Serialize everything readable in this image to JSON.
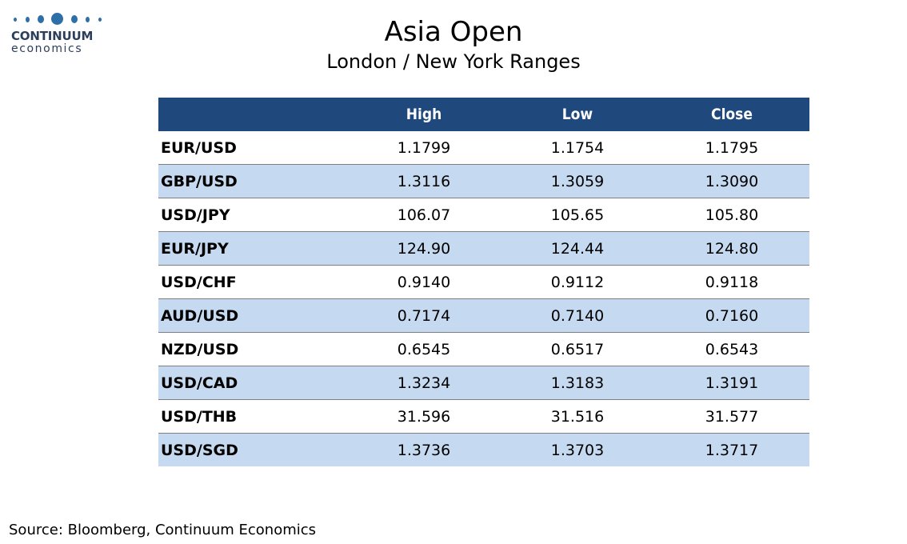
{
  "logo": {
    "name": "CONTINUUM",
    "sub": "economics",
    "color": "#2d6fa6"
  },
  "title": "Asia Open",
  "subtitle": "London / New York Ranges",
  "table": {
    "header_color": "#1f497d",
    "alt_row_color": "#c5d9f1",
    "columns": [
      "",
      "High",
      "Low",
      "Close"
    ],
    "rows": [
      {
        "pair": "EUR/USD",
        "high": "1.1799",
        "low": "1.1754",
        "close": "1.1795"
      },
      {
        "pair": "GBP/USD",
        "high": "1.3116",
        "low": "1.3059",
        "close": "1.3090"
      },
      {
        "pair": "USD/JPY",
        "high": "106.07",
        "low": "105.65",
        "close": "105.80"
      },
      {
        "pair": "EUR/JPY",
        "high": "124.90",
        "low": "124.44",
        "close": "124.80"
      },
      {
        "pair": "USD/CHF",
        "high": "0.9140",
        "low": "0.9112",
        "close": "0.9118"
      },
      {
        "pair": "AUD/USD",
        "high": "0.7174",
        "low": "0.7140",
        "close": "0.7160"
      },
      {
        "pair": "NZD/USD",
        "high": "0.6545",
        "low": "0.6517",
        "close": "0.6543"
      },
      {
        "pair": "USD/CAD",
        "high": "1.3234",
        "low": "1.3183",
        "close": "1.3191"
      },
      {
        "pair": "USD/THB",
        "high": "31.596",
        "low": "31.516",
        "close": "31.577"
      },
      {
        "pair": "USD/SGD",
        "high": "1.3736",
        "low": "1.3703",
        "close": "1.3717"
      }
    ]
  },
  "source": "Source: Bloomberg, Continuum Economics"
}
